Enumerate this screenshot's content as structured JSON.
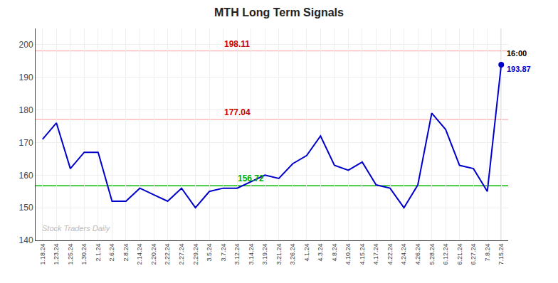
{
  "chart_data": {
    "type": "line",
    "title": "MTH Long Term Signals",
    "categories": [
      "1.18.24",
      "1.23.24",
      "1.25.24",
      "1.30.24",
      "2.1.24",
      "2.6.24",
      "2.8.24",
      "2.14.24",
      "2.20.24",
      "2.22.24",
      "2.27.24",
      "2.29.24",
      "3.5.24",
      "3.7.24",
      "3.12.24",
      "3.14.24",
      "3.19.24",
      "3.21.24",
      "3.26.24",
      "4.1.24",
      "4.3.24",
      "4.8.24",
      "4.10.24",
      "4.15.24",
      "4.17.24",
      "4.22.24",
      "4.24.24",
      "4.26.24",
      "5.28.24",
      "6.12.24",
      "6.21.24",
      "6.27.24",
      "7.8.24",
      "7.15.24"
    ],
    "values": [
      171.0,
      176.0,
      162.0,
      167.0,
      167.0,
      152.0,
      152.0,
      156.0,
      154.0,
      152.0,
      156.0,
      150.0,
      155.0,
      156.0,
      156.0,
      158.0,
      160.0,
      159.0,
      163.5,
      166.0,
      172.0,
      163.0,
      161.5,
      164.0,
      157.0,
      156.0,
      150.0,
      157.0,
      179.0,
      174.0,
      163.0,
      162.0,
      155.0,
      193.87
    ],
    "color": "#0000cc",
    "ylim": [
      140,
      205
    ],
    "yticks": [
      140,
      150,
      160,
      170,
      180,
      190,
      200
    ],
    "grid": true,
    "reference_lines": [
      {
        "value": 198.11,
        "label": "198.11",
        "color": "#ffbbbb",
        "label_color": "#cc0000"
      },
      {
        "value": 177.04,
        "label": "177.04",
        "color": "#ffbbbb",
        "label_color": "#cc0000"
      },
      {
        "value": 156.72,
        "label": "156.72",
        "color": "#00bb00",
        "label_color": "#00aa00"
      }
    ],
    "last_point_labels": [
      {
        "text": "16:00",
        "color": "#000000"
      },
      {
        "text": "193.87",
        "color": "#0000cc"
      }
    ],
    "watermark": "Stock Traders Daily"
  }
}
